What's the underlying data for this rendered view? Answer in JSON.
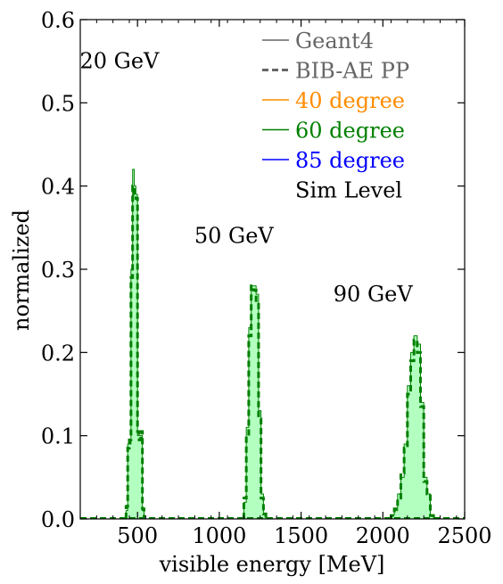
{
  "chart_data": {
    "type": "histogram",
    "xlabel": "visible energy [MeV]",
    "ylabel": "normalized",
    "xlim": [
      150,
      2500
    ],
    "ylim": [
      0,
      0.6
    ],
    "xticks": [
      500,
      1000,
      1500,
      2000,
      2500
    ],
    "xtick_labels": [
      "500",
      "1000",
      "1500",
      "2000",
      "2500"
    ],
    "yticks": [
      0.0,
      0.1,
      0.2,
      0.3,
      0.4,
      0.5,
      0.6
    ],
    "ytick_labels": [
      "0.0",
      "0.1",
      "0.2",
      "0.3",
      "0.4",
      "0.5",
      "0.6"
    ],
    "grid": false,
    "legend_position": "top-right",
    "legend": [
      {
        "label": "Geant4",
        "style": "solid",
        "color": "#666666"
      },
      {
        "label": "BIB-AE PP",
        "style": "dashed",
        "color": "#666666"
      },
      {
        "label": "40 degree",
        "style": "solid",
        "color": "#ff8c00"
      },
      {
        "label": "60 degree",
        "style": "solid",
        "color": "#008000"
      },
      {
        "label": "85 degree",
        "style": "solid",
        "color": "#0000ff"
      },
      {
        "label": "Sim Level",
        "style": "none",
        "color": "#000000"
      }
    ],
    "annotations": [
      {
        "text": "20 GeV",
        "x": 300,
        "y": 0.55
      },
      {
        "text": "50 GeV",
        "x": 1000,
        "y": 0.34
      },
      {
        "text": "90 GeV",
        "x": 1850,
        "y": 0.27
      }
    ],
    "series": [
      {
        "kind": "geant4-fill",
        "style": "solid",
        "color": "#008000",
        "fill": "#b3ffc0",
        "bins": [
          [
            430,
            440,
            0.01
          ],
          [
            440,
            450,
            0.09
          ],
          [
            450,
            460,
            0.09
          ],
          [
            460,
            470,
            0.3
          ],
          [
            470,
            480,
            0.42
          ],
          [
            480,
            490,
            0.4
          ],
          [
            490,
            500,
            0.39
          ],
          [
            500,
            510,
            0.1
          ],
          [
            510,
            520,
            0.1
          ],
          [
            520,
            530,
            0.1
          ],
          [
            530,
            540,
            0.01
          ],
          [
            1150,
            1165,
            0.02
          ],
          [
            1165,
            1180,
            0.11
          ],
          [
            1180,
            1195,
            0.23
          ],
          [
            1195,
            1210,
            0.28
          ],
          [
            1210,
            1225,
            0.28
          ],
          [
            1225,
            1240,
            0.27
          ],
          [
            1240,
            1255,
            0.13
          ],
          [
            1255,
            1270,
            0.03
          ],
          [
            1270,
            1285,
            0.005
          ],
          [
            2050,
            2070,
            0.005
          ],
          [
            2070,
            2090,
            0.01
          ],
          [
            2090,
            2110,
            0.03
          ],
          [
            2110,
            2130,
            0.05
          ],
          [
            2130,
            2150,
            0.09
          ],
          [
            2150,
            2170,
            0.16
          ],
          [
            2170,
            2190,
            0.2
          ],
          [
            2190,
            2210,
            0.22
          ],
          [
            2210,
            2230,
            0.21
          ],
          [
            2230,
            2250,
            0.14
          ],
          [
            2250,
            2270,
            0.05
          ],
          [
            2270,
            2290,
            0.03
          ],
          [
            2290,
            2310,
            0.005
          ]
        ]
      },
      {
        "kind": "bibae-line",
        "style": "dashed",
        "color": "#008000",
        "bins": [
          [
            430,
            440,
            0.015
          ],
          [
            440,
            450,
            0.085
          ],
          [
            450,
            460,
            0.095
          ],
          [
            460,
            470,
            0.29
          ],
          [
            470,
            480,
            0.4
          ],
          [
            480,
            490,
            0.39
          ],
          [
            490,
            500,
            0.385
          ],
          [
            500,
            510,
            0.105
          ],
          [
            510,
            520,
            0.095
          ],
          [
            520,
            530,
            0.105
          ],
          [
            530,
            540,
            0.012
          ],
          [
            1150,
            1165,
            0.025
          ],
          [
            1165,
            1180,
            0.1
          ],
          [
            1180,
            1195,
            0.22
          ],
          [
            1195,
            1210,
            0.28
          ],
          [
            1210,
            1225,
            0.275
          ],
          [
            1225,
            1240,
            0.26
          ],
          [
            1240,
            1255,
            0.12
          ],
          [
            1255,
            1270,
            0.025
          ],
          [
            1270,
            1285,
            0.006
          ],
          [
            2050,
            2070,
            0.004
          ],
          [
            2070,
            2090,
            0.012
          ],
          [
            2090,
            2110,
            0.025
          ],
          [
            2110,
            2130,
            0.055
          ],
          [
            2130,
            2150,
            0.085
          ],
          [
            2150,
            2170,
            0.15
          ],
          [
            2170,
            2190,
            0.19
          ],
          [
            2190,
            2210,
            0.215
          ],
          [
            2210,
            2230,
            0.2
          ],
          [
            2230,
            2250,
            0.135
          ],
          [
            2250,
            2270,
            0.045
          ],
          [
            2270,
            2290,
            0.03
          ],
          [
            2290,
            2310,
            0.004
          ]
        ]
      }
    ]
  }
}
